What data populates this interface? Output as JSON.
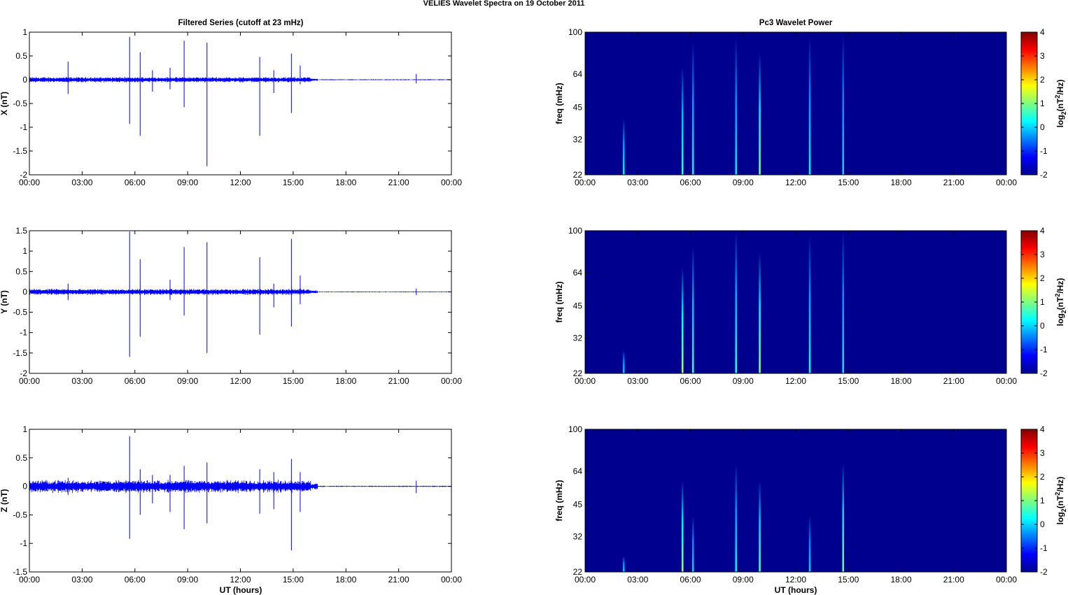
{
  "suptitle": "VELIES Wavelet Spectra on 19 October   2011",
  "left_title": "Filtered Series (cutoff at 23 mHz)",
  "right_title": "Pc3 Wavelet Power",
  "x_tick_labels": [
    "00:00",
    "03:00",
    "06:00",
    "09:00",
    "12:00",
    "15:00",
    "18:00",
    "21:00",
    "00:00"
  ],
  "x_label": "UT (hours)",
  "freq_label": "freq (mHz)",
  "freq_ticks": [
    "100",
    "64",
    "45",
    "32",
    "22"
  ],
  "colorbar_ticks": [
    "4",
    "3",
    "2",
    "1",
    "0",
    "-1",
    "-2"
  ],
  "colorbar_label_base": "log",
  "colorbar_label_sub": "2",
  "colorbar_label_mid": "(nT",
  "colorbar_label_sup": "2",
  "colorbar_label_end": "/Hz)",
  "colors": {
    "series": "#0000ff",
    "background_spectrum": "#00008f",
    "axes": "#000000"
  },
  "chart_data": [
    {
      "type": "line",
      "component": "X",
      "ylabel": "X (nT)",
      "ylim": [
        -2,
        1
      ],
      "ytick_labels": [
        "1",
        "0.5",
        "0",
        "-0.5",
        "-1",
        "-1.5",
        "-2"
      ],
      "xlim_hours": [
        0,
        24
      ],
      "noise_amplitude_before_16h": 0.06,
      "spikes": [
        {
          "t": 2.2,
          "max": 0.38,
          "min": -0.3
        },
        {
          "t": 5.7,
          "max": 0.9,
          "min": -0.93
        },
        {
          "t": 6.3,
          "max": 0.58,
          "min": -1.18
        },
        {
          "t": 7.0,
          "max": 0.2,
          "min": -0.25
        },
        {
          "t": 8.0,
          "max": 0.25,
          "min": -0.2
        },
        {
          "t": 8.8,
          "max": 0.82,
          "min": -0.58
        },
        {
          "t": 10.1,
          "max": 0.78,
          "min": -1.82
        },
        {
          "t": 13.1,
          "max": 0.48,
          "min": -1.18
        },
        {
          "t": 13.9,
          "max": 0.2,
          "min": -0.28
        },
        {
          "t": 14.9,
          "max": 0.55,
          "min": -0.7
        },
        {
          "t": 15.4,
          "max": 0.3,
          "min": -0.1
        },
        {
          "t": 22.0,
          "max": 0.12,
          "min": -0.08
        }
      ]
    },
    {
      "type": "line",
      "component": "Y",
      "ylabel": "Y (nT)",
      "ylim": [
        -2,
        1.5
      ],
      "ytick_labels": [
        "1.5",
        "1",
        "0.5",
        "0",
        "-0.5",
        "-1",
        "-1.5",
        "-2"
      ],
      "xlim_hours": [
        0,
        24
      ],
      "noise_amplitude_before_16h": 0.08,
      "spikes": [
        {
          "t": 2.2,
          "max": 0.2,
          "min": -0.2
        },
        {
          "t": 5.7,
          "max": 1.48,
          "min": -1.6
        },
        {
          "t": 6.3,
          "max": 0.8,
          "min": -1.1
        },
        {
          "t": 8.0,
          "max": 0.3,
          "min": -0.2
        },
        {
          "t": 8.8,
          "max": 1.1,
          "min": -0.58
        },
        {
          "t": 10.1,
          "max": 1.22,
          "min": -1.5
        },
        {
          "t": 13.1,
          "max": 0.85,
          "min": -1.05
        },
        {
          "t": 13.9,
          "max": 0.2,
          "min": -0.38
        },
        {
          "t": 14.9,
          "max": 1.3,
          "min": -0.85
        },
        {
          "t": 15.4,
          "max": 0.4,
          "min": -0.3
        },
        {
          "t": 22.0,
          "max": 0.08,
          "min": -0.08
        }
      ]
    },
    {
      "type": "line",
      "component": "Z",
      "ylabel": "Z (nT)",
      "ylim": [
        -1.5,
        1
      ],
      "ytick_labels": [
        "1",
        "0.5",
        "0",
        "-0.5",
        "-1",
        "-1.5"
      ],
      "xlim_hours": [
        0,
        24
      ],
      "noise_amplitude_before_16h": 0.12,
      "spikes": [
        {
          "t": 2.2,
          "max": 0.15,
          "min": -0.15
        },
        {
          "t": 5.7,
          "max": 0.88,
          "min": -0.92
        },
        {
          "t": 6.3,
          "max": 0.3,
          "min": -0.5
        },
        {
          "t": 7.0,
          "max": 0.2,
          "min": -0.3
        },
        {
          "t": 8.0,
          "max": 0.2,
          "min": -0.45
        },
        {
          "t": 8.8,
          "max": 0.36,
          "min": -0.75
        },
        {
          "t": 10.1,
          "max": 0.42,
          "min": -0.65
        },
        {
          "t": 13.1,
          "max": 0.3,
          "min": -0.48
        },
        {
          "t": 13.9,
          "max": 0.25,
          "min": -0.4
        },
        {
          "t": 14.9,
          "max": 0.48,
          "min": -1.12
        },
        {
          "t": 15.4,
          "max": 0.25,
          "min": -0.45
        },
        {
          "t": 22.0,
          "max": 0.1,
          "min": -0.12
        }
      ]
    },
    {
      "type": "heatmap",
      "component": "X",
      "ylim_mHz": [
        22,
        100
      ],
      "clim": [
        -2,
        4
      ],
      "events": [
        {
          "t": 2.2,
          "ftop": 40,
          "level": 0.2
        },
        {
          "t": 5.55,
          "ftop": 70,
          "level": 0.6
        },
        {
          "t": 6.15,
          "ftop": 90,
          "level": 0.2
        },
        {
          "t": 8.6,
          "ftop": 95,
          "level": 0.1
        },
        {
          "t": 9.95,
          "ftop": 80,
          "level": 0.9
        },
        {
          "t": 12.8,
          "ftop": 95,
          "level": 0.2
        },
        {
          "t": 14.7,
          "ftop": 98,
          "level": 0.0
        }
      ]
    },
    {
      "type": "heatmap",
      "component": "Y",
      "ylim_mHz": [
        22,
        100
      ],
      "clim": [
        -2,
        4
      ],
      "events": [
        {
          "t": 2.2,
          "ftop": 28,
          "level": 0.0
        },
        {
          "t": 5.55,
          "ftop": 68,
          "level": 1.2
        },
        {
          "t": 6.15,
          "ftop": 85,
          "level": 0.5
        },
        {
          "t": 8.6,
          "ftop": 100,
          "level": 0.4
        },
        {
          "t": 9.95,
          "ftop": 80,
          "level": 1.0
        },
        {
          "t": 12.8,
          "ftop": 95,
          "level": 0.3
        },
        {
          "t": 14.7,
          "ftop": 100,
          "level": 0.1
        }
      ]
    },
    {
      "type": "heatmap",
      "component": "Z",
      "ylim_mHz": [
        22,
        100
      ],
      "clim": [
        -2,
        4
      ],
      "events": [
        {
          "t": 2.2,
          "ftop": 26,
          "level": 0.0
        },
        {
          "t": 5.55,
          "ftop": 58,
          "level": 1.1
        },
        {
          "t": 6.15,
          "ftop": 40,
          "level": 0.0
        },
        {
          "t": 8.6,
          "ftop": 70,
          "level": 0.2
        },
        {
          "t": 9.95,
          "ftop": 58,
          "level": 0.7
        },
        {
          "t": 12.8,
          "ftop": 40,
          "level": 0.0
        },
        {
          "t": 14.7,
          "ftop": 70,
          "level": 0.8
        }
      ]
    }
  ]
}
